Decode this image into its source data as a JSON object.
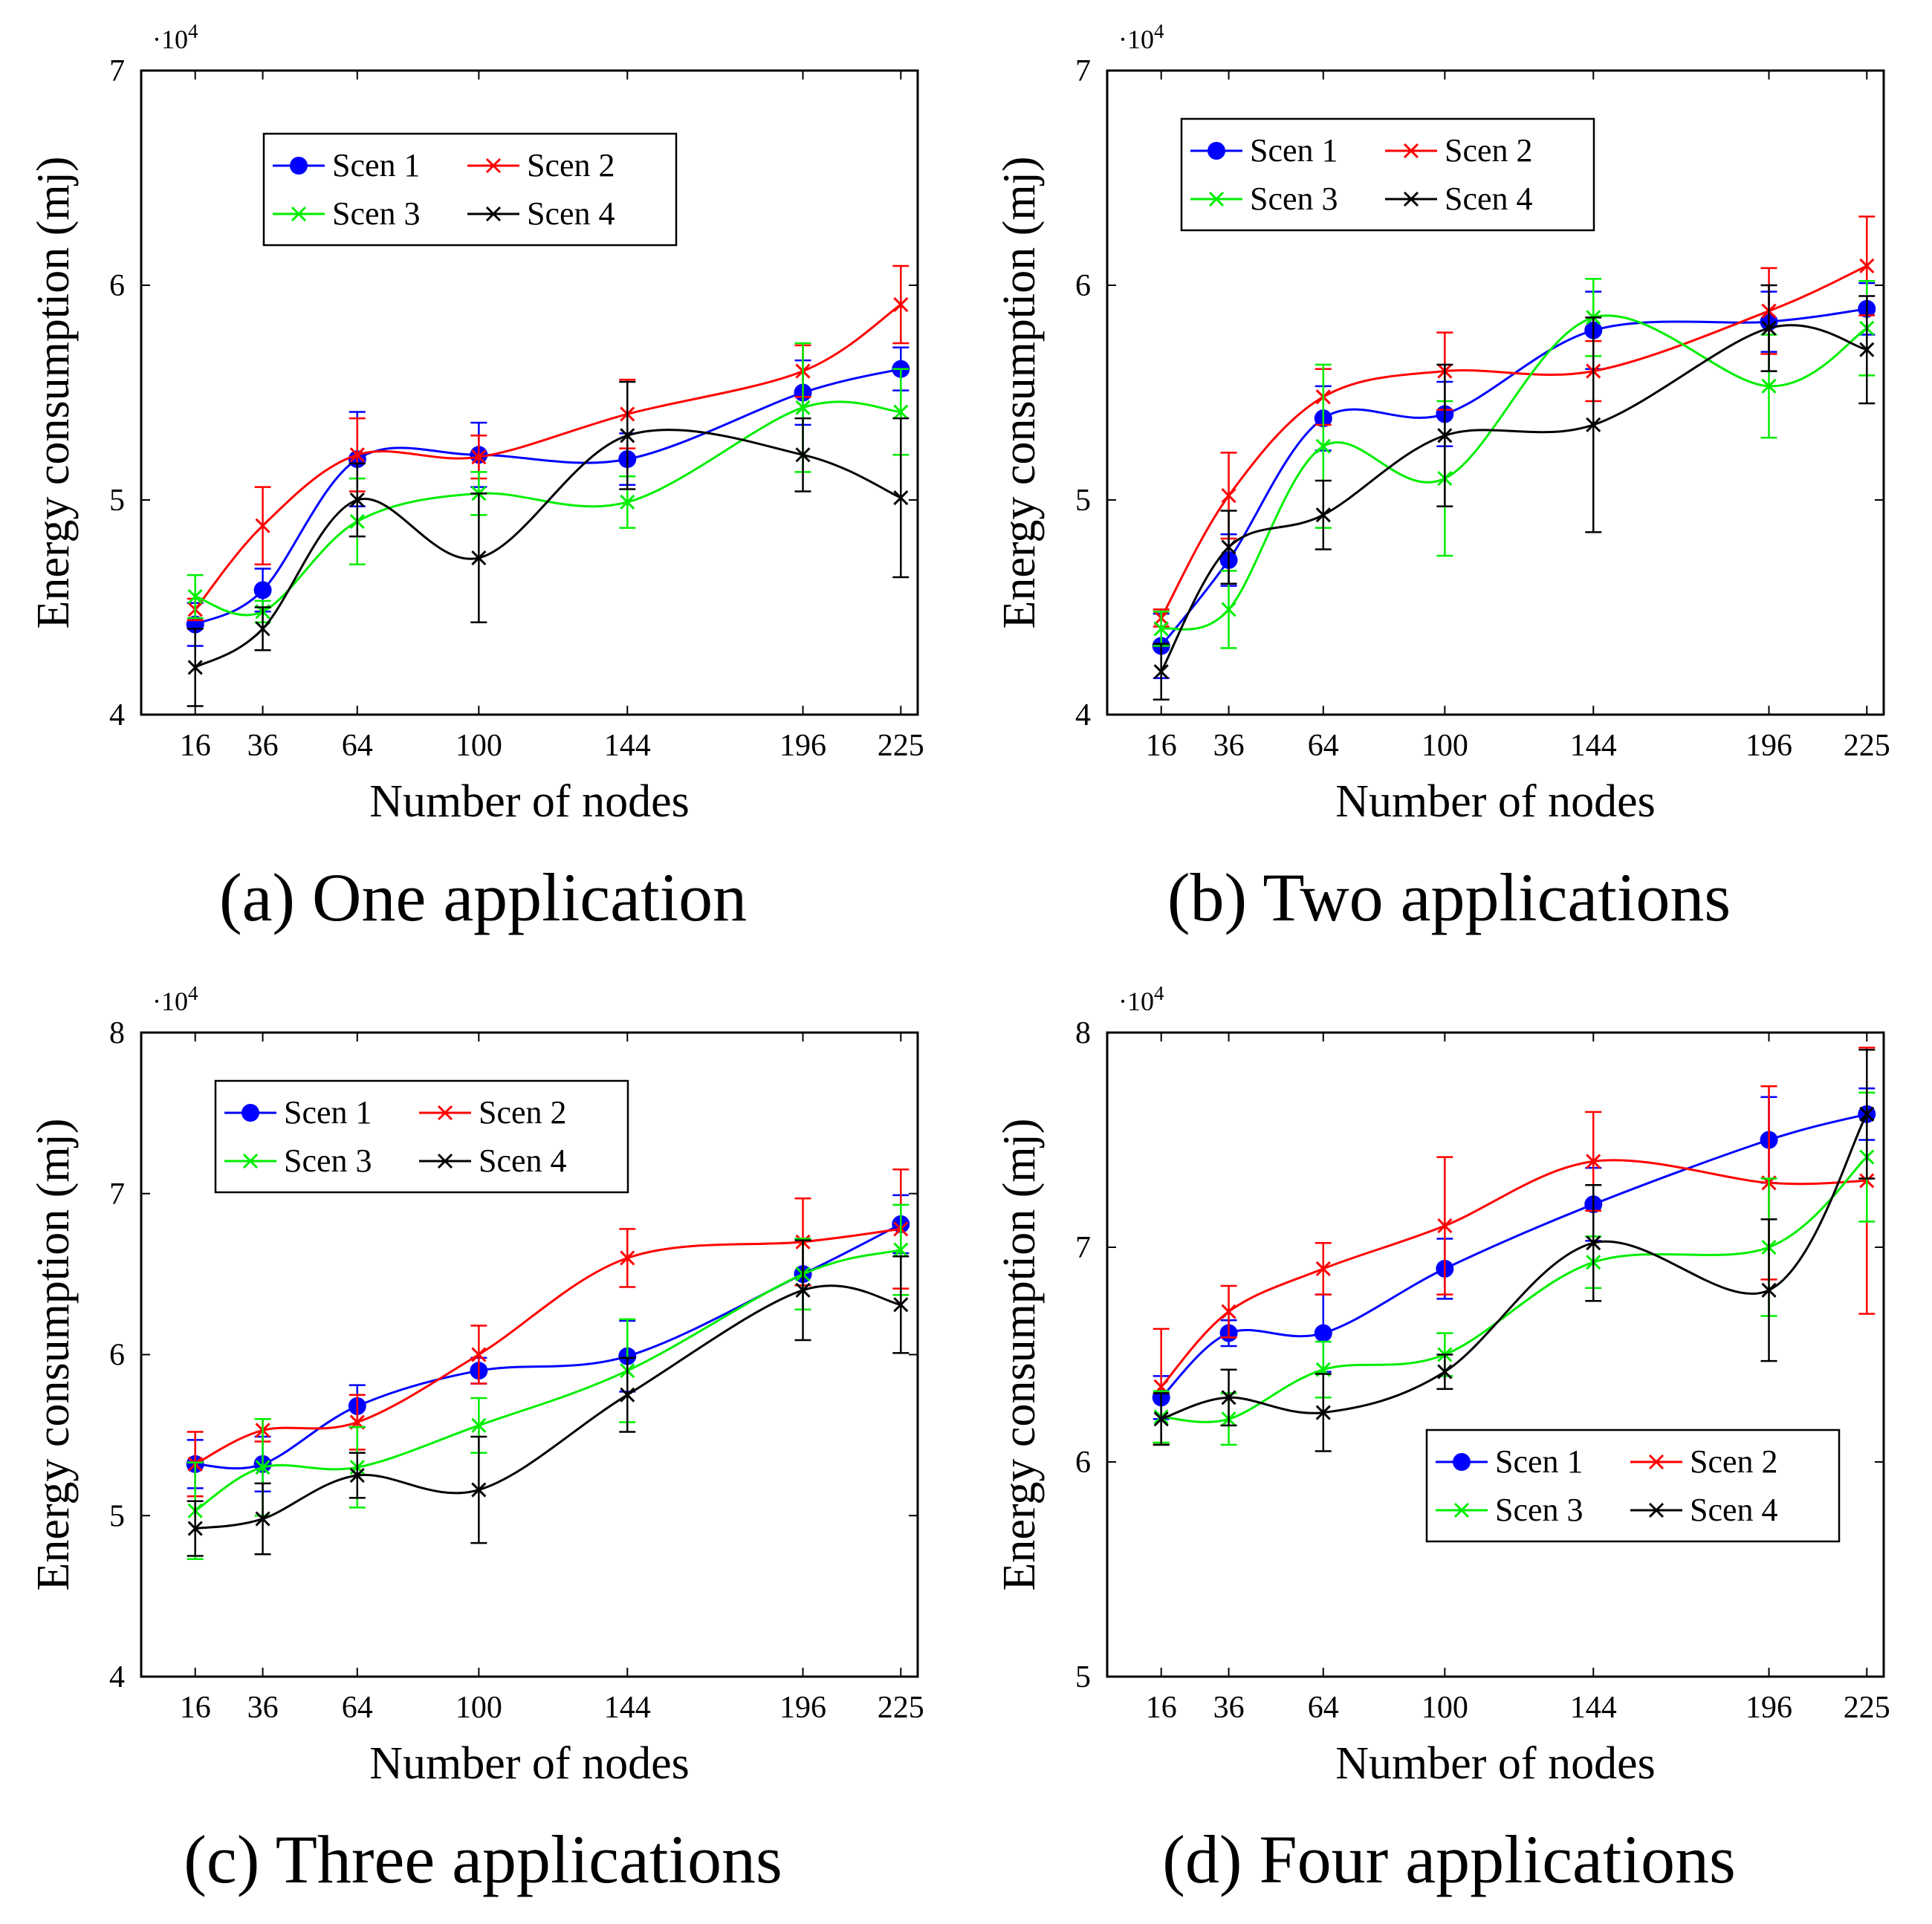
{
  "colors": {
    "scen1": "#0000ff",
    "scen2": "#ff0000",
    "scen3": "#00ee00",
    "scen4": "#000000"
  },
  "chart_data": [
    {
      "type": "line",
      "caption": "(a) One application",
      "xlabel": "Number of nodes",
      "ylabel": "Energy consumption (mj)",
      "yexp": "·10",
      "yexp_sup": "4",
      "x": [
        16,
        36,
        64,
        100,
        144,
        196,
        225
      ],
      "xtick_labels": [
        "16",
        "36",
        "64",
        "100",
        "144",
        "196",
        "225"
      ],
      "ylim": [
        4,
        7
      ],
      "yticks": [
        4,
        5,
        6,
        7
      ],
      "ytick_labels": [
        "4",
        "5",
        "6",
        "7"
      ],
      "legend_position": "top-center",
      "series": [
        {
          "name": "Scen 1",
          "marker": "dot",
          "values": [
            4.42,
            4.58,
            5.19,
            5.21,
            5.19,
            5.5,
            5.61
          ],
          "err": [
            0.1,
            0.1,
            0.22,
            0.15,
            0.12,
            0.15,
            0.1
          ]
        },
        {
          "name": "Scen 2",
          "marker": "x",
          "values": [
            4.49,
            4.88,
            5.21,
            5.2,
            5.4,
            5.6,
            5.91
          ],
          "err": [
            0.05,
            0.18,
            0.17,
            0.1,
            0.16,
            0.12,
            0.18
          ]
        },
        {
          "name": "Scen 3",
          "marker": "x",
          "values": [
            4.55,
            4.48,
            4.9,
            5.03,
            4.99,
            5.43,
            5.41
          ],
          "err": [
            0.1,
            0.05,
            0.2,
            0.1,
            0.12,
            0.3,
            0.2
          ]
        },
        {
          "name": "Scen 4",
          "marker": "x",
          "values": [
            4.22,
            4.4,
            5.0,
            4.73,
            5.3,
            5.21,
            5.01
          ],
          "err": [
            0.18,
            0.1,
            0.17,
            0.3,
            0.25,
            0.17,
            0.37
          ]
        }
      ]
    },
    {
      "type": "line",
      "caption": "(b) Two applications",
      "xlabel": "Number of nodes",
      "ylabel": "Energy consumption (mj)",
      "yexp": "·10",
      "yexp_sup": "4",
      "x": [
        16,
        36,
        64,
        100,
        144,
        196,
        225
      ],
      "xtick_labels": [
        "16",
        "36",
        "64",
        "100",
        "144",
        "196",
        "225"
      ],
      "ylim": [
        4,
        7
      ],
      "yticks": [
        4,
        5,
        6,
        7
      ],
      "ytick_labels": [
        "4",
        "5",
        "6",
        "7"
      ],
      "legend_position": "top-left",
      "series": [
        {
          "name": "Scen 1",
          "marker": "dot",
          "values": [
            4.32,
            4.72,
            5.38,
            5.4,
            5.79,
            5.83,
            5.89
          ],
          "err": [
            0.15,
            0.12,
            0.15,
            0.15,
            0.18,
            0.14,
            0.12
          ]
        },
        {
          "name": "Scen 2",
          "marker": "x",
          "values": [
            4.45,
            5.02,
            5.48,
            5.6,
            5.6,
            5.88,
            6.09
          ],
          "err": [
            0.04,
            0.2,
            0.13,
            0.18,
            0.14,
            0.2,
            0.23
          ]
        },
        {
          "name": "Scen 3",
          "marker": "x",
          "values": [
            4.4,
            4.49,
            5.25,
            5.1,
            5.85,
            5.53,
            5.8
          ],
          "err": [
            0.08,
            0.18,
            0.38,
            0.36,
            0.18,
            0.24,
            0.22
          ]
        },
        {
          "name": "Scen 4",
          "marker": "x",
          "values": [
            4.2,
            4.78,
            4.93,
            5.3,
            5.35,
            5.8,
            5.7
          ],
          "err": [
            0.13,
            0.17,
            0.16,
            0.33,
            0.5,
            0.2,
            0.25
          ]
        }
      ]
    },
    {
      "type": "line",
      "caption": "(c) Three applications",
      "xlabel": "Number of nodes",
      "ylabel": "Energy consumption (mj)",
      "yexp": "·10",
      "yexp_sup": "4",
      "x": [
        16,
        36,
        64,
        100,
        144,
        196,
        225
      ],
      "xtick_labels": [
        "16",
        "36",
        "64",
        "100",
        "144",
        "196",
        "225"
      ],
      "ylim": [
        4,
        8
      ],
      "yticks": [
        4,
        5,
        6,
        7,
        8
      ],
      "ytick_labels": [
        "4",
        "5",
        "6",
        "7",
        "8"
      ],
      "legend_position": "top-left",
      "series": [
        {
          "name": "Scen 1",
          "marker": "dot",
          "values": [
            5.32,
            5.32,
            5.68,
            5.9,
            5.99,
            6.5,
            6.81
          ],
          "err": [
            0.15,
            0.17,
            0.13,
            0.08,
            0.22,
            0.22,
            0.18
          ]
        },
        {
          "name": "Scen 2",
          "marker": "x",
          "values": [
            5.32,
            5.53,
            5.58,
            6.0,
            6.6,
            6.7,
            6.78
          ],
          "err": [
            0.2,
            0.07,
            0.17,
            0.18,
            0.18,
            0.27,
            0.37
          ]
        },
        {
          "name": "Scen 3",
          "marker": "x",
          "values": [
            5.03,
            5.3,
            5.3,
            5.56,
            5.9,
            6.5,
            6.65
          ],
          "err": [
            0.3,
            0.3,
            0.25,
            0.17,
            0.32,
            0.22,
            0.28
          ]
        },
        {
          "name": "Scen 4",
          "marker": "x",
          "values": [
            4.92,
            4.98,
            5.25,
            5.16,
            5.75,
            6.4,
            6.31
          ],
          "err": [
            0.17,
            0.22,
            0.14,
            0.33,
            0.23,
            0.31,
            0.3
          ]
        }
      ]
    },
    {
      "type": "line",
      "caption": "(d) Four applications",
      "xlabel": "Number of nodes",
      "ylabel": "Energy consumption (mj)",
      "yexp": "·10",
      "yexp_sup": "4",
      "x": [
        16,
        36,
        64,
        100,
        144,
        196,
        225
      ],
      "xtick_labels": [
        "16",
        "36",
        "64",
        "100",
        "144",
        "196",
        "225"
      ],
      "ylim": [
        5,
        8
      ],
      "yticks": [
        5,
        6,
        7,
        8
      ],
      "ytick_labels": [
        "5",
        "6",
        "7",
        "8"
      ],
      "legend_position": "bottom-right",
      "series": [
        {
          "name": "Scen 1",
          "marker": "dot",
          "values": [
            6.3,
            6.6,
            6.6,
            6.9,
            7.2,
            7.5,
            7.62
          ],
          "err": [
            0.1,
            0.06,
            0.18,
            0.14,
            0.17,
            0.2,
            0.12
          ]
        },
        {
          "name": "Scen 2",
          "marker": "x",
          "values": [
            6.35,
            6.7,
            6.9,
            7.1,
            7.4,
            7.3,
            7.31
          ],
          "err": [
            0.27,
            0.12,
            0.12,
            0.32,
            0.23,
            0.45,
            0.62
          ]
        },
        {
          "name": "Scen 3",
          "marker": "x",
          "values": [
            6.21,
            6.2,
            6.43,
            6.5,
            6.93,
            7.0,
            7.42
          ],
          "err": [
            0.12,
            0.12,
            0.13,
            0.1,
            0.12,
            0.32,
            0.3
          ]
        },
        {
          "name": "Scen 4",
          "marker": "x",
          "values": [
            6.2,
            6.3,
            6.23,
            6.42,
            7.02,
            6.8,
            7.62
          ],
          "err": [
            0.12,
            0.13,
            0.18,
            0.08,
            0.27,
            0.33,
            0.3
          ]
        }
      ]
    }
  ]
}
